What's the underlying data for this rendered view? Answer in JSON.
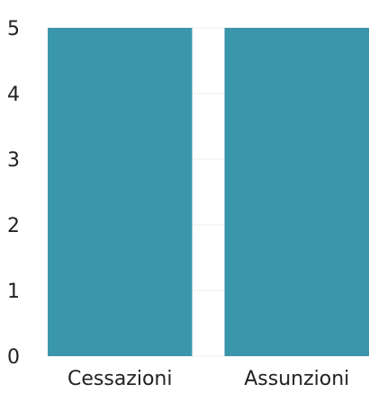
{
  "chart_data": {
    "type": "bar",
    "categories": [
      "Cessazioni",
      "Assunzioni"
    ],
    "values": [
      5,
      5
    ],
    "ylim": [
      0,
      5
    ],
    "yticks": [
      0,
      1,
      2,
      3,
      4,
      5
    ],
    "grid": true,
    "bar_color": "#3a96ab"
  }
}
